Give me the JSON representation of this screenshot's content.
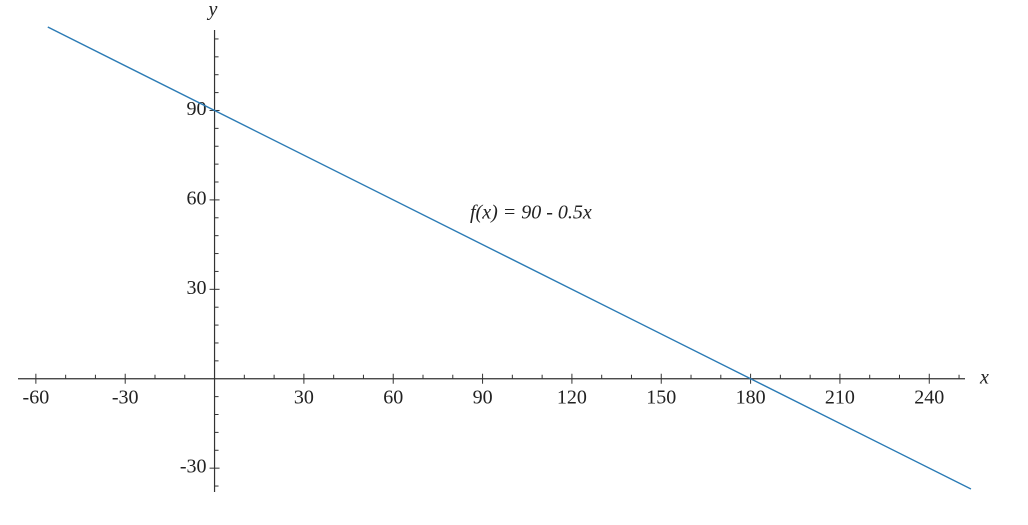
{
  "chart_data": {
    "type": "line",
    "x_label": "x",
    "y_label": "y",
    "annotation": "f(x) = 90 - 0.5x",
    "x": [
      -56,
      254
    ],
    "series": [
      {
        "name": "f(x) = 90 - 0.5x",
        "color": "#2b7bb5",
        "values": [
          118,
          -37
        ]
      }
    ],
    "xlim": [
      -66,
      252
    ],
    "ylim": [
      -38,
      117
    ],
    "xticks": [
      -60,
      -30,
      30,
      60,
      90,
      120,
      150,
      180,
      210,
      240
    ],
    "yticks": [
      -30,
      30,
      60,
      90
    ],
    "xminorticks": [
      -50,
      -40,
      -20,
      -10,
      10,
      20,
      40,
      50,
      70,
      80,
      100,
      110,
      130,
      140,
      160,
      170,
      190,
      200,
      220,
      230,
      250
    ],
    "yminorticks": [
      -36,
      -24,
      -18,
      -12,
      -6,
      6,
      12,
      18,
      24,
      36,
      42,
      48,
      54,
      66,
      72,
      78,
      84,
      96,
      102,
      108,
      114
    ]
  }
}
